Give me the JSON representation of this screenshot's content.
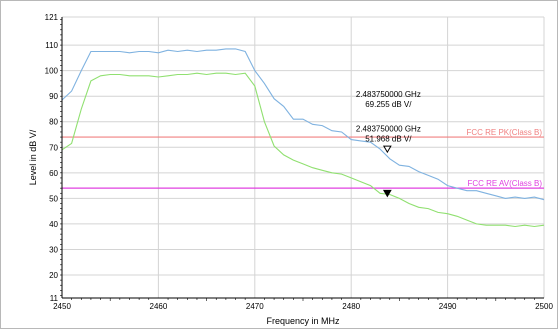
{
  "chart_data": {
    "type": "line",
    "xlabel": "Frequency in MHz",
    "ylabel": "Level in dB   V/",
    "xlim": [
      2450,
      2500
    ],
    "ylim": [
      11,
      121
    ],
    "xticks": [
      2450,
      2460,
      2470,
      2480,
      2490,
      2500
    ],
    "yticks": [
      11,
      20,
      30,
      40,
      50,
      60,
      70,
      80,
      90,
      100,
      110,
      121
    ],
    "grid": true,
    "series": [
      {
        "color": "#7fb2e0",
        "x": [
          2450,
          2451,
          2452,
          2453,
          2454,
          2455,
          2456,
          2457,
          2458,
          2459,
          2460,
          2461,
          2462,
          2463,
          2464,
          2465,
          2466,
          2467,
          2468,
          2469,
          2470,
          2471,
          2472,
          2473,
          2474,
          2475,
          2476,
          2477,
          2478,
          2479,
          2480,
          2481,
          2482,
          2483,
          2484,
          2485,
          2486,
          2487,
          2488,
          2489,
          2490,
          2491,
          2492,
          2493,
          2494,
          2495,
          2496,
          2497,
          2498,
          2499,
          2500
        ],
        "values": [
          88.5,
          92,
          100,
          107.5,
          107.5,
          107.5,
          107.5,
          107,
          107.5,
          107.5,
          107,
          108,
          107.5,
          108,
          107.5,
          108,
          108,
          108.5,
          108.5,
          107.5,
          100,
          95,
          89,
          86,
          81,
          81,
          79,
          78.5,
          76.5,
          76,
          73,
          72.5,
          72,
          69.3,
          65.5,
          63,
          62.5,
          60.5,
          59,
          57.5,
          55,
          54,
          53,
          53,
          52,
          51,
          50,
          50.5,
          50,
          50.5,
          49.5
        ]
      },
      {
        "color": "#90e070",
        "x": [
          2450,
          2451,
          2452,
          2453,
          2454,
          2455,
          2456,
          2457,
          2458,
          2459,
          2460,
          2461,
          2462,
          2463,
          2464,
          2465,
          2466,
          2467,
          2468,
          2469,
          2470,
          2471,
          2472,
          2473,
          2474,
          2475,
          2476,
          2477,
          2478,
          2479,
          2480,
          2481,
          2482,
          2483,
          2484,
          2485,
          2486,
          2487,
          2488,
          2489,
          2490,
          2491,
          2492,
          2493,
          2494,
          2495,
          2496,
          2497,
          2498,
          2499,
          2500
        ],
        "values": [
          69,
          71.5,
          85,
          96,
          98,
          98.5,
          98.5,
          98,
          98,
          98,
          97.5,
          98,
          98.5,
          98.5,
          99,
          98.5,
          99,
          99,
          98.5,
          99,
          94,
          80,
          70.5,
          67,
          65,
          63.5,
          62,
          61,
          60,
          59.5,
          58,
          56.5,
          55,
          52,
          51.5,
          50,
          48,
          46.5,
          46,
          44.5,
          44,
          43,
          41.5,
          40,
          39.5,
          39.5,
          39.5,
          39,
          39.5,
          39,
          39.5
        ]
      }
    ],
    "limit_lines": [
      {
        "label": "FCC RE PK(Class B)",
        "value": 74,
        "color": "#f08080"
      },
      {
        "label": "FCC RE AV(Class B)",
        "value": 54,
        "color": "#e040e0"
      }
    ],
    "markers": [
      {
        "x": 2483.75,
        "y": 69.255,
        "line1": "2.483750000 GHz",
        "line2": "69.255 dB    V/",
        "symbol": "open-triangle-down"
      },
      {
        "x": 2483.75,
        "y": 51.968,
        "line1": "2.483750000 GHz",
        "line2": "51.968 dB    V/",
        "symbol": "filled-triangle-down"
      }
    ]
  }
}
